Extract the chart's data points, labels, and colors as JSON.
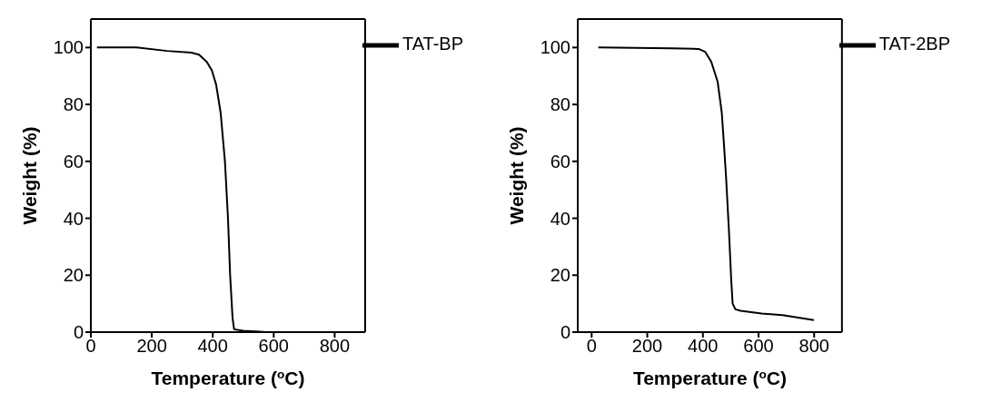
{
  "chart_data": [
    {
      "type": "line",
      "xlabel": "Temperature ($^{o}$C)",
      "ylabel": "Weight (%)",
      "xlim": [
        0,
        900
      ],
      "xticks": [
        0,
        200,
        400,
        600,
        800
      ],
      "ylim": [
        0,
        110
      ],
      "yticks": [
        0,
        20,
        40,
        60,
        80,
        100
      ],
      "legend": "top right",
      "grid": false,
      "marker": "none",
      "line_style": "solid",
      "series": [
        {
          "name": "TAT-BP",
          "color": "#000000",
          "x": [
            20,
            150,
            250,
            330,
            355,
            380,
            397,
            411,
            426,
            440,
            450,
            457,
            465,
            470,
            500,
            567
          ],
          "values": [
            100,
            100,
            98.8,
            98.2,
            97.5,
            95,
            92,
            87,
            77,
            60,
            40,
            20,
            5,
            1,
            0.5,
            0.1
          ]
        }
      ]
    },
    {
      "type": "line",
      "xlabel": "Temperature ($^{o}$C)",
      "ylabel": "Weight (%)",
      "xlim": [
        -50,
        900
      ],
      "xticks": [
        0,
        200,
        400,
        600,
        800
      ],
      "ylim": [
        0,
        110
      ],
      "yticks": [
        0,
        20,
        40,
        60,
        80,
        100
      ],
      "legend": "top right",
      "grid": false,
      "marker": "none",
      "line_style": "solid",
      "series": [
        {
          "name": "TAT-2BP",
          "color": "#000000",
          "x": [
            24,
            287,
            385,
            408,
            430,
            453,
            468,
            475,
            483,
            494,
            502,
            507,
            517,
            536,
            611,
            686,
            799
          ],
          "values": [
            100,
            99.7,
            99.5,
            98.5,
            95,
            88,
            77,
            67,
            55,
            35,
            18,
            10,
            8,
            7.5,
            6.5,
            6,
            4.2
          ]
        }
      ]
    }
  ]
}
